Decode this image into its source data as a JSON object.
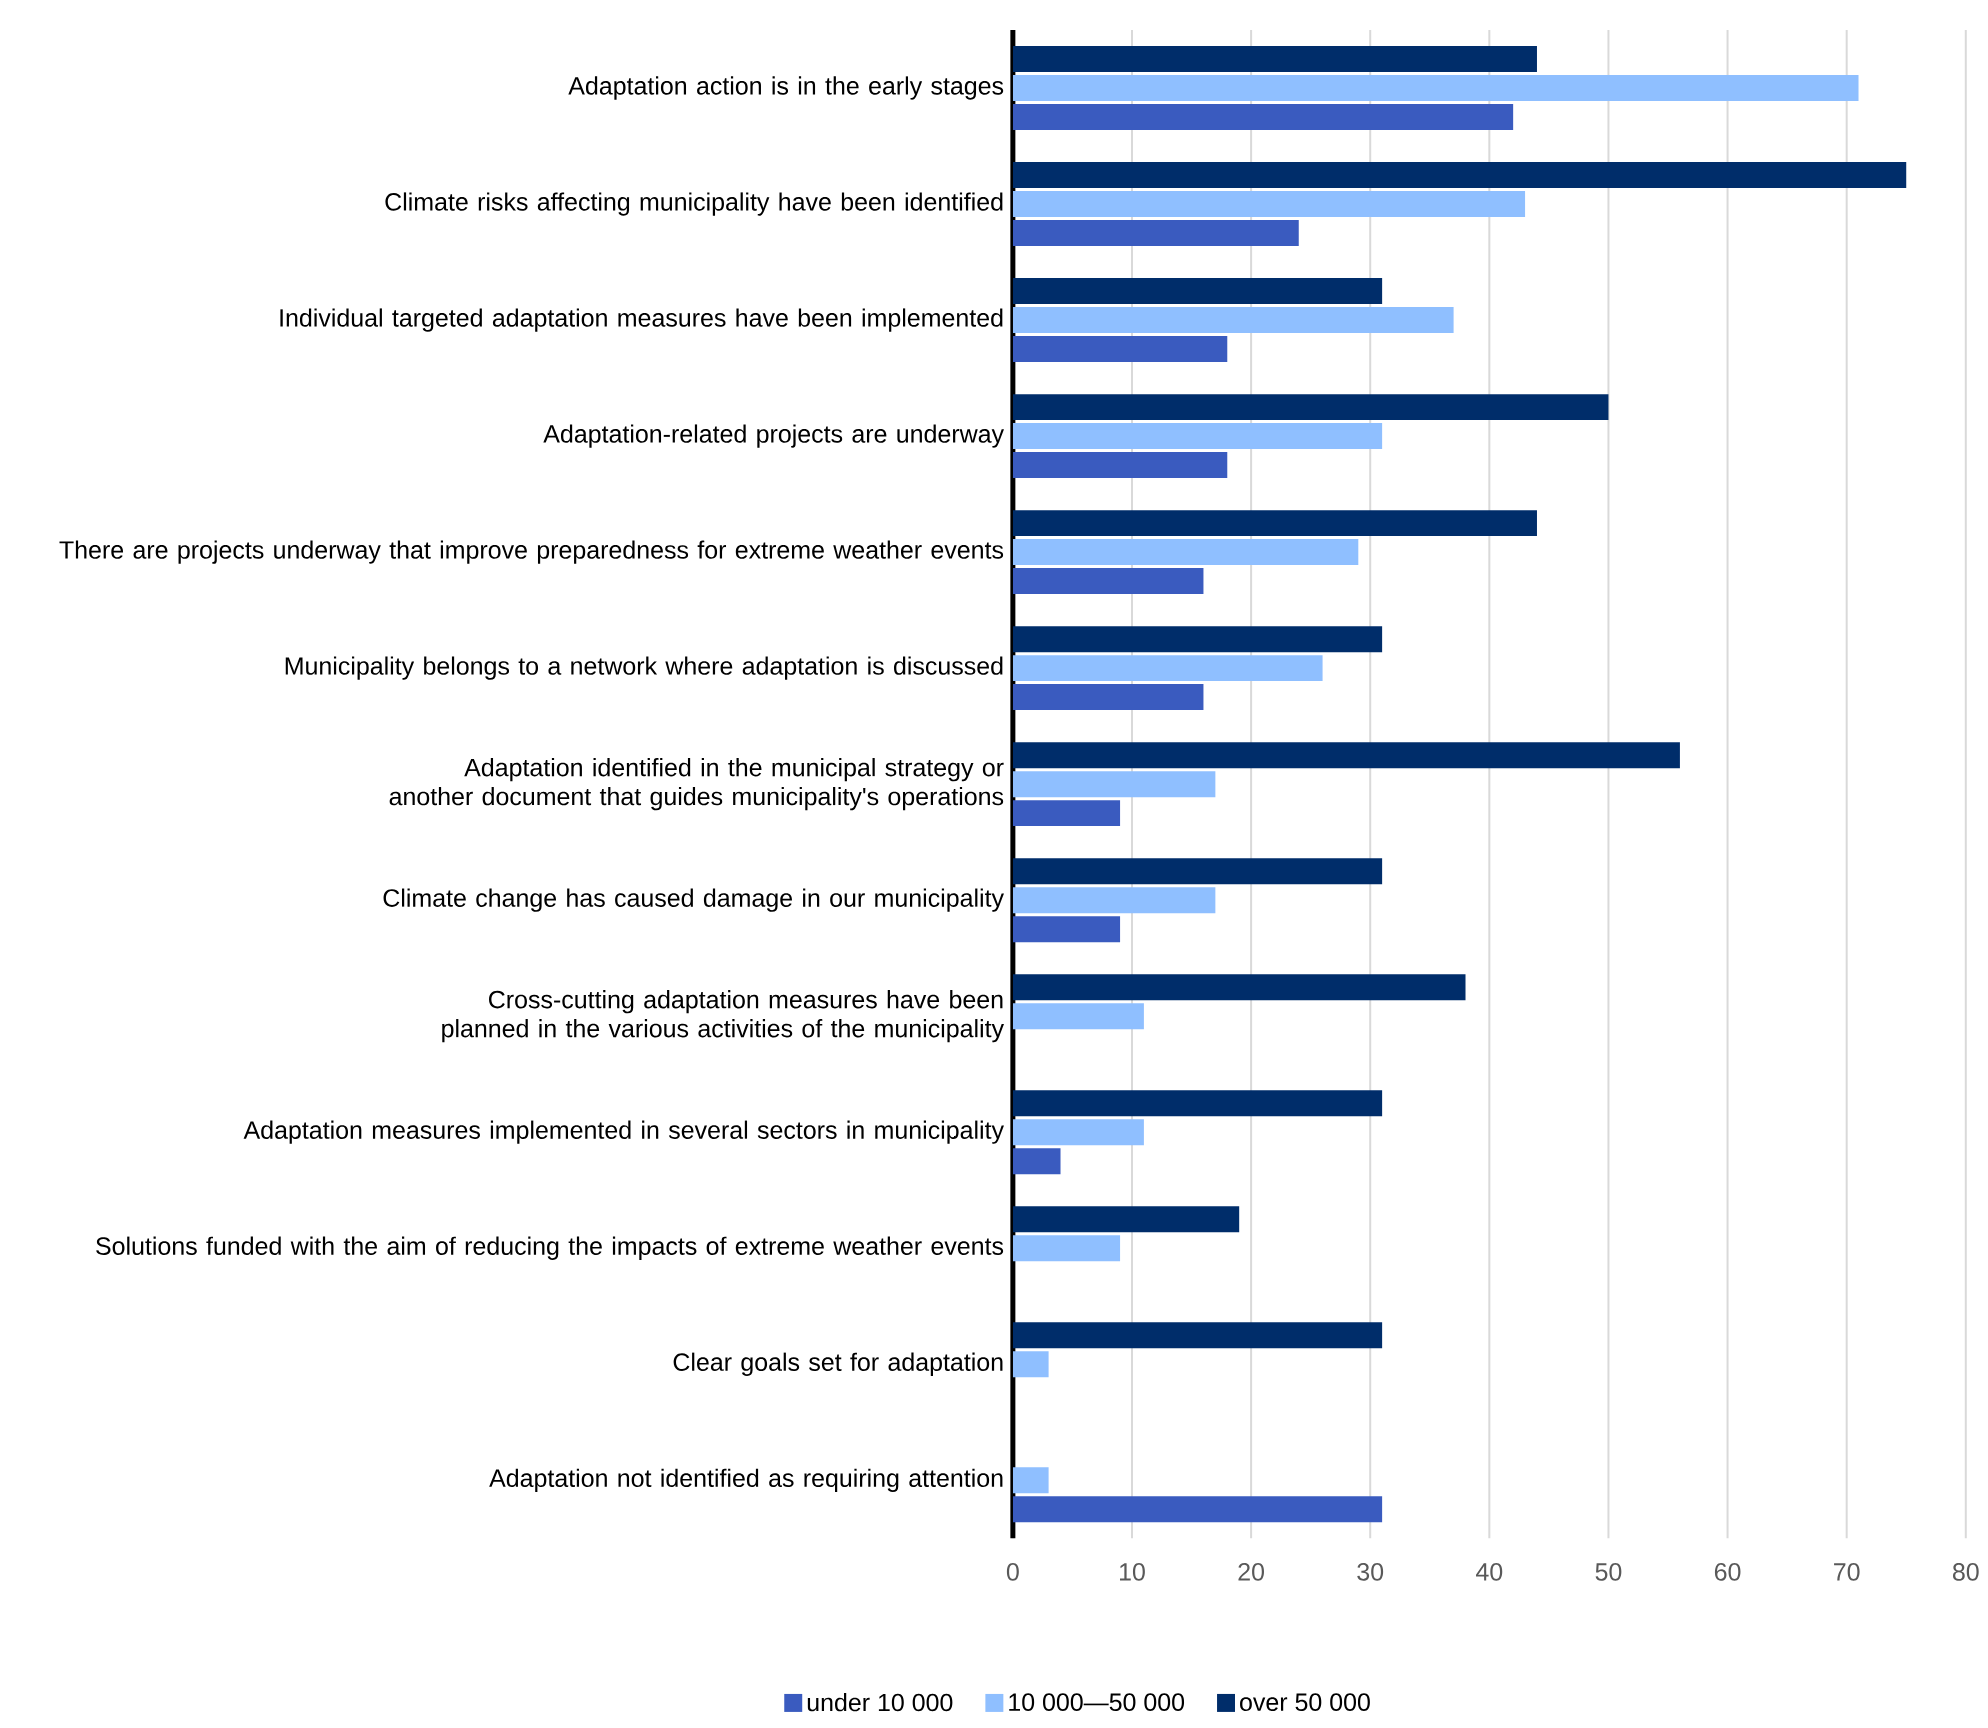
{
  "chart_data": {
    "type": "bar",
    "orientation": "horizontal",
    "categories": [
      "Adaptation action is in the early stages",
      "Climate risks affecting municipality have been identified",
      "Individual targeted adaptation measures have been implemented",
      "Adaptation-related projects are underway",
      "There are projects underway that improve preparedness for extreme weather events",
      "Municipality belongs to a network where adaptation is discussed",
      "Adaptation identified in the municipal strategy or another document that guides municipality's operations",
      "Climate change has caused damage in our municipality",
      "Cross-cutting adaptation measures have been planned in the various activities of the municipality",
      "Adaptation measures implemented in several sectors in municipality",
      "Solutions funded with the aim of reducing the impacts of extreme weather events",
      "Clear goals set for adaptation",
      "Adaptation not identified as requiring attention"
    ],
    "series": [
      {
        "name": "under 10 000",
        "color": "#3a5bbf",
        "values": [
          42,
          24,
          18,
          18,
          16,
          16,
          9,
          9,
          0,
          4,
          0,
          0,
          31
        ]
      },
      {
        "name": "10 000—50 000",
        "color": "#8fbfff",
        "values": [
          71,
          43,
          37,
          31,
          29,
          26,
          17,
          17,
          11,
          11,
          9,
          3,
          3
        ]
      },
      {
        "name": "over 50 000",
        "color": "#002d6a",
        "values": [
          44,
          75,
          31,
          50,
          44,
          31,
          56,
          31,
          38,
          31,
          19,
          31,
          0
        ]
      }
    ],
    "xlim": [
      0,
      80
    ],
    "xticks": [
      0,
      10,
      20,
      30,
      40,
      50,
      60,
      70,
      80
    ],
    "grid": "x",
    "legend": "bottom"
  }
}
